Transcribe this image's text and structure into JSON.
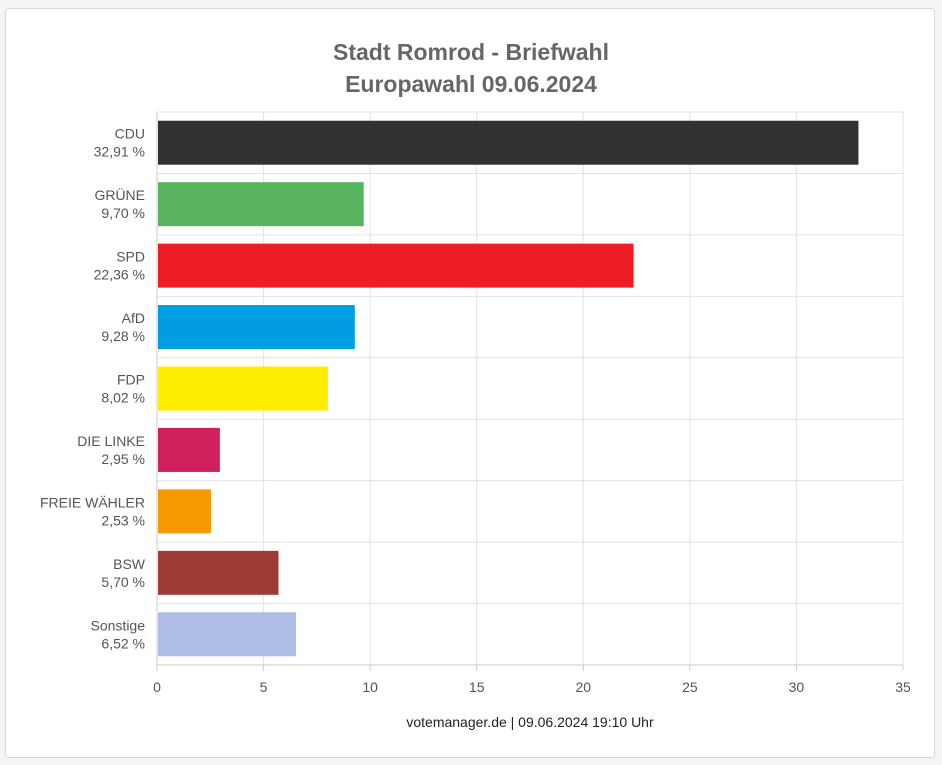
{
  "chart_data": {
    "type": "bar",
    "orientation": "horizontal",
    "title": "Stadt Romrod - Briefwahl",
    "subtitle": "Europawahl 09.06.2024",
    "categories": [
      "CDU",
      "GRÜNE",
      "SPD",
      "AfD",
      "FDP",
      "DIE LINKE",
      "FREIE WÄHLER",
      "BSW",
      "Sonstige"
    ],
    "value_labels": [
      "32,91 %",
      "9,70 %",
      "22,36 %",
      "9,28 %",
      "8,02 %",
      "2,95 %",
      "2,53 %",
      "5,70 %",
      "6,52 %"
    ],
    "values": [
      32.91,
      9.7,
      22.36,
      9.28,
      8.02,
      2.95,
      2.53,
      5.7,
      6.52
    ],
    "colors": [
      "#333132",
      "#58b45f",
      "#ee1c24",
      "#009ee0",
      "#ffed00",
      "#d0215e",
      "#f59a00",
      "#9e3b35",
      "#aebde5"
    ],
    "xlim": [
      0,
      35
    ],
    "xticks": [
      "0",
      "5",
      "10",
      "15",
      "20",
      "25",
      "30",
      "35"
    ],
    "grid": true
  },
  "footer": "votemanager.de | 09.06.2024 19:10 Uhr"
}
